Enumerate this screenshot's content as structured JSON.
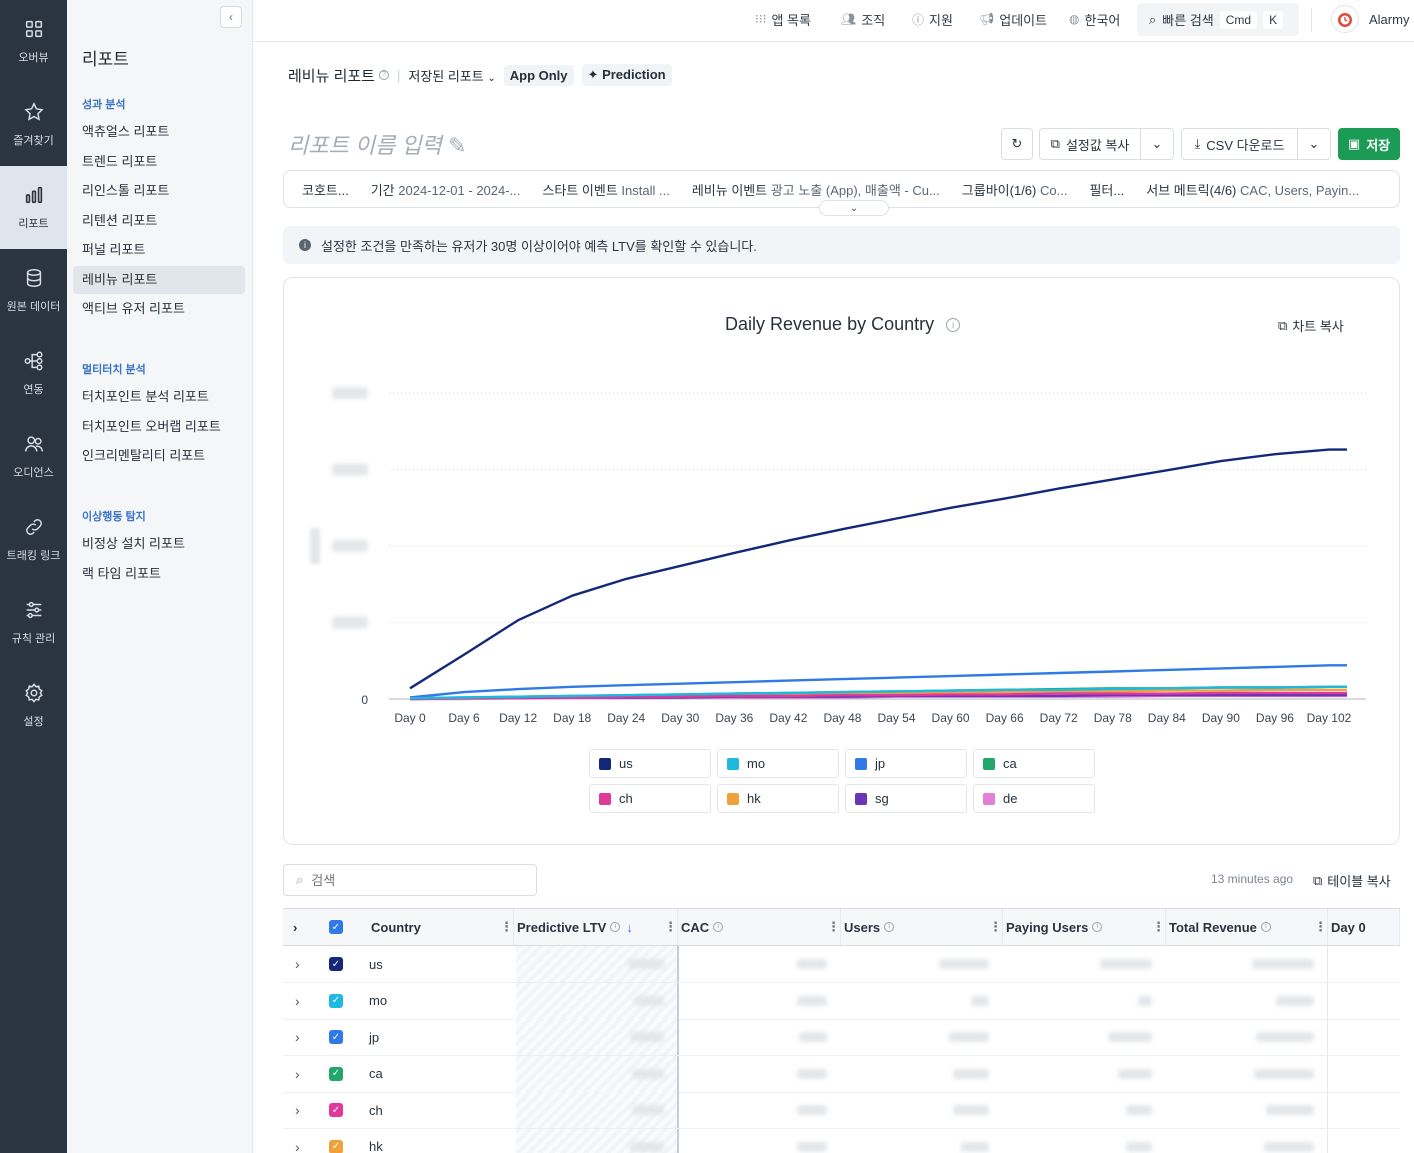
{
  "rail": [
    {
      "label": "오버뷰",
      "icon": "grid-icon"
    },
    {
      "label": "즐겨찾기",
      "icon": "star-icon"
    },
    {
      "label": "리포트",
      "icon": "bar-chart-icon"
    },
    {
      "label": "원본 데이터",
      "icon": "database-icon"
    },
    {
      "label": "연동",
      "icon": "integration-icon"
    },
    {
      "label": "오디언스",
      "icon": "users-icon"
    },
    {
      "label": "트래킹 링크",
      "icon": "link-icon"
    },
    {
      "label": "규칙 관리",
      "icon": "sliders-icon"
    },
    {
      "label": "설정",
      "icon": "gear-icon"
    }
  ],
  "subnav": {
    "title": "리포트",
    "sections": [
      {
        "title": "성과 분석",
        "items": [
          "액츄얼스 리포트",
          "트렌드 리포트",
          "리인스톨 리포트",
          "리텐션 리포트",
          "퍼널 리포트",
          "레비뉴 리포트",
          "액티브 유저 리포트"
        ]
      },
      {
        "title": "멀티터치 분석",
        "items": [
          "터치포인트 분석 리포트",
          "터치포인트 오버랩 리포트",
          "인크리멘탈리티 리포트"
        ]
      },
      {
        "title": "이상행동 탐지",
        "items": [
          "비정상 설치 리포트",
          "랙 타임 리포트"
        ]
      }
    ]
  },
  "topbar": {
    "apps": "앱 목록",
    "org": "조직",
    "support": "지원",
    "updates": "업데이트",
    "language": "한국어",
    "quick_search": "빠른 검색",
    "kbd1": "Cmd",
    "kbd2": "K",
    "account": "Alarmy"
  },
  "header": {
    "title": "레비뉴 리포트",
    "saved": "저장된 리포트",
    "app_only": "App Only",
    "prediction": "Prediction",
    "report_name_placeholder": "리포트 이름 입력",
    "copy_settings": "설정값 복사",
    "csv": "CSV 다운로드",
    "save": "저장"
  },
  "filters": [
    {
      "k": "코호트...",
      "v": ""
    },
    {
      "k": "기간",
      "v": "2024-12-01 - 2024-..."
    },
    {
      "k": "스타트 이벤트",
      "v": "Install ..."
    },
    {
      "k": "레비뉴 이벤트",
      "v": "광고 노출 (App), 매출액 - Cu..."
    },
    {
      "k": "그룹바이(1/6)",
      "v": "Co..."
    },
    {
      "k": "필터...",
      "v": ""
    },
    {
      "k": "서브 메트릭(4/6)",
      "v": "CAC, Users, Payin..."
    }
  ],
  "notice": "설정한 조건을 만족하는 유저가 30명 이상이어야 예측 LTV를 확인할 수 있습니다.",
  "chart_copy": "차트 복사",
  "chart_data": {
    "type": "line",
    "title": "Daily Revenue by Country",
    "xlabel": "",
    "ylabel": "",
    "x_ticks": [
      "Day 0",
      "Day 6",
      "Day 12",
      "Day 18",
      "Day 24",
      "Day 30",
      "Day 36",
      "Day 42",
      "Day 48",
      "Day 54",
      "Day 60",
      "Day 66",
      "Day 72",
      "Day 78",
      "Day 84",
      "Day 90",
      "Day 96",
      "Day 102"
    ],
    "y_ticks": [
      "0"
    ],
    "ylim": [
      0,
      4
    ],
    "grid": true,
    "legend_position": "bottom",
    "x": [
      0,
      6,
      12,
      18,
      24,
      30,
      36,
      42,
      48,
      54,
      60,
      66,
      72,
      78,
      84,
      90,
      96,
      102,
      104
    ],
    "series": [
      {
        "name": "us",
        "color": "#14287a",
        "values": [
          0.14,
          0.58,
          1.03,
          1.35,
          1.57,
          1.74,
          1.91,
          2.07,
          2.22,
          2.36,
          2.5,
          2.62,
          2.75,
          2.87,
          2.99,
          3.11,
          3.2,
          3.26,
          3.26
        ]
      },
      {
        "name": "mo",
        "color": "#1fb8e0",
        "values": [
          0.01,
          0.02,
          0.03,
          0.04,
          0.05,
          0.06,
          0.07,
          0.08,
          0.09,
          0.1,
          0.11,
          0.12,
          0.12,
          0.13,
          0.14,
          0.15,
          0.15,
          0.16,
          0.16
        ]
      },
      {
        "name": "jp",
        "color": "#2f7ae5",
        "values": [
          0.02,
          0.09,
          0.13,
          0.16,
          0.18,
          0.2,
          0.22,
          0.24,
          0.26,
          0.28,
          0.3,
          0.32,
          0.34,
          0.36,
          0.38,
          0.4,
          0.42,
          0.44,
          0.44
        ]
      },
      {
        "name": "ca",
        "color": "#22a76a",
        "values": [
          0.01,
          0.02,
          0.03,
          0.04,
          0.05,
          0.06,
          0.07,
          0.08,
          0.09,
          0.1,
          0.11,
          0.12,
          0.13,
          0.14,
          0.14,
          0.15,
          0.15,
          0.16,
          0.16
        ]
      },
      {
        "name": "ch",
        "color": "#e0399a",
        "values": [
          0.0,
          0.01,
          0.02,
          0.02,
          0.03,
          0.03,
          0.04,
          0.04,
          0.05,
          0.05,
          0.06,
          0.06,
          0.07,
          0.07,
          0.07,
          0.08,
          0.08,
          0.08,
          0.08
        ]
      },
      {
        "name": "hk",
        "color": "#f0a23a",
        "values": [
          0.0,
          0.01,
          0.02,
          0.03,
          0.04,
          0.05,
          0.06,
          0.06,
          0.07,
          0.08,
          0.09,
          0.09,
          0.1,
          0.1,
          0.11,
          0.11,
          0.12,
          0.12,
          0.12
        ]
      },
      {
        "name": "sg",
        "color": "#6b35b8",
        "values": [
          0.0,
          0.01,
          0.01,
          0.02,
          0.02,
          0.02,
          0.03,
          0.03,
          0.03,
          0.04,
          0.04,
          0.04,
          0.04,
          0.05,
          0.05,
          0.05,
          0.05,
          0.05,
          0.05
        ]
      },
      {
        "name": "de",
        "color": "#e47fd6",
        "values": [
          0.0,
          0.0,
          0.01,
          0.01,
          0.01,
          0.02,
          0.02,
          0.02,
          0.02,
          0.03,
          0.03,
          0.03,
          0.03,
          0.03,
          0.04,
          0.04,
          0.04,
          0.04,
          0.04
        ]
      }
    ]
  },
  "table": {
    "search_placeholder": "검색",
    "updated": "13 minutes ago",
    "copy": "테이블 복사",
    "columns": [
      "Country",
      "Predictive LTV",
      "CAC",
      "Users",
      "Paying Users",
      "Total Revenue",
      "Day 0"
    ],
    "rows": [
      {
        "country": "us",
        "color": "#14287a"
      },
      {
        "country": "mo",
        "color": "#1fb8e0"
      },
      {
        "country": "jp",
        "color": "#2f7ae5"
      },
      {
        "country": "ca",
        "color": "#22a76a"
      },
      {
        "country": "ch",
        "color": "#e0399a"
      },
      {
        "country": "hk",
        "color": "#f0a23a"
      }
    ]
  }
}
